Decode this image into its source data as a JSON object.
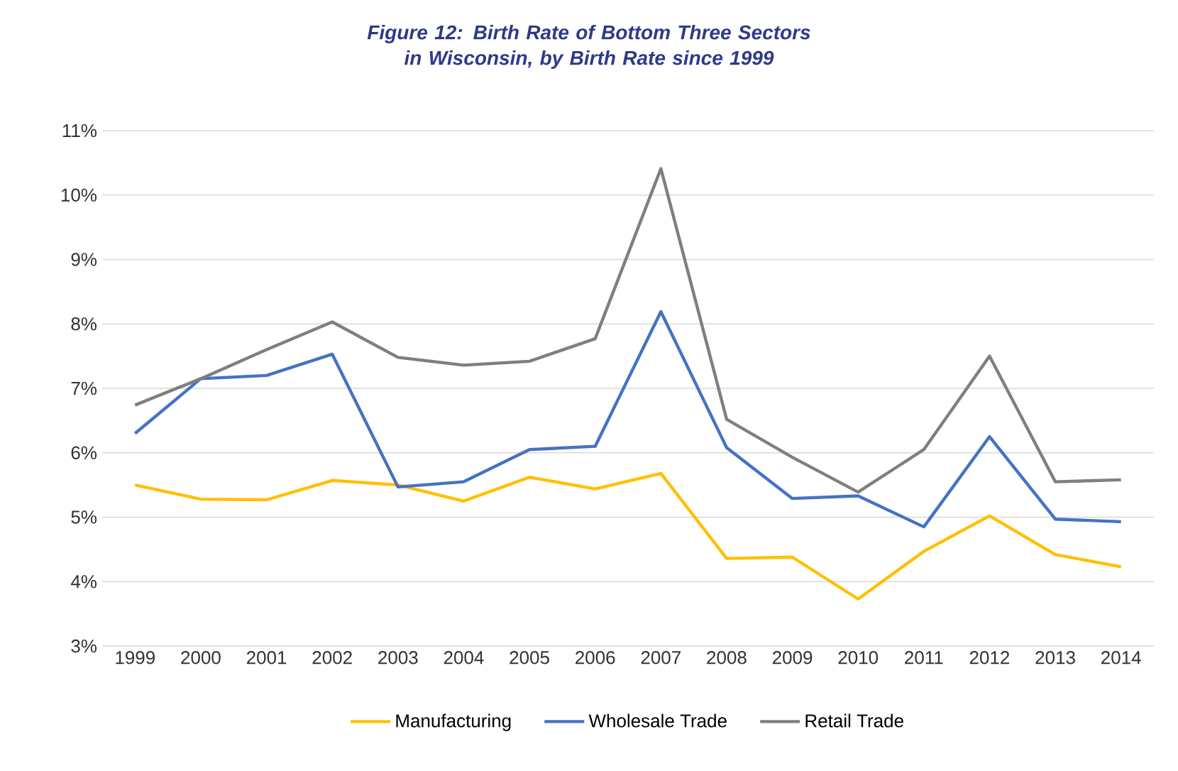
{
  "chart_data": {
    "type": "line",
    "title": "Figure 12: Birth Rate of Bottom Three Sectors in Wisconsin, by Birth Rate since 1999",
    "categories": [
      "1999",
      "2000",
      "2001",
      "2002",
      "2003",
      "2004",
      "2005",
      "2006",
      "2007",
      "2008",
      "2009",
      "2010",
      "2011",
      "2012",
      "2013",
      "2014"
    ],
    "series": [
      {
        "name": "Manufacturing",
        "color": "#ffc000",
        "values": [
          5.5,
          5.28,
          5.27,
          5.57,
          5.5,
          5.25,
          5.62,
          5.44,
          5.68,
          4.36,
          4.38,
          3.73,
          4.47,
          5.02,
          4.42,
          4.23
        ]
      },
      {
        "name": "Wholesale Trade",
        "color": "#4472c4",
        "values": [
          6.3,
          7.15,
          7.2,
          7.53,
          5.47,
          5.55,
          6.05,
          6.1,
          8.19,
          6.08,
          5.29,
          5.33,
          4.85,
          6.25,
          4.97,
          4.93
        ]
      },
      {
        "name": "Retail Trade",
        "color": "#7f7f7f",
        "values": [
          6.74,
          7.15,
          7.6,
          8.03,
          7.48,
          7.36,
          7.42,
          7.77,
          10.41,
          6.52,
          5.93,
          5.39,
          6.05,
          7.5,
          5.55,
          5.58
        ]
      }
    ],
    "ylim": [
      3,
      11
    ],
    "yticks": [
      {
        "value": 3,
        "label": "3%"
      },
      {
        "value": 4,
        "label": "4%"
      },
      {
        "value": 5,
        "label": "5%"
      },
      {
        "value": 6,
        "label": "6%"
      },
      {
        "value": 7,
        "label": "7%"
      },
      {
        "value": 8,
        "label": "8%"
      },
      {
        "value": 9,
        "label": "9%"
      },
      {
        "value": 10,
        "label": "10%"
      },
      {
        "value": 11,
        "label": "11%"
      }
    ],
    "grid": "y",
    "legend": "bottom",
    "marker": "none",
    "line_style": "solid"
  }
}
